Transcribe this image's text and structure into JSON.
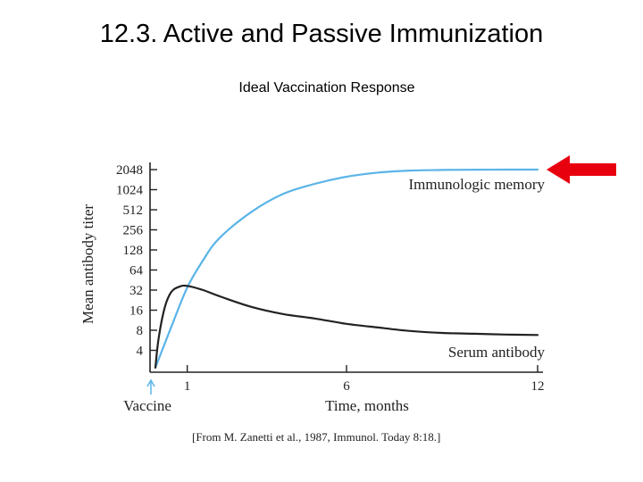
{
  "slide": {
    "title": "12.3. Active and Passive Immunization",
    "subtitle": "Ideal Vaccination Response",
    "citation": "[From M. Zanetti et al., 1987, Immunol. Today 8:18.]"
  },
  "colors": {
    "memory_line": "#5ab4e8",
    "serum_line": "#222222",
    "arrow": "#e8000f",
    "axis": "#222222"
  },
  "chart_data": {
    "type": "line",
    "title": "Ideal Vaccination Response",
    "xlabel": "Time, months",
    "ylabel": "Mean antibody titer",
    "x_ticks": [
      1,
      6,
      12
    ],
    "x_tick_labels": [
      "1",
      "6",
      "12"
    ],
    "xlim": [
      0,
      12
    ],
    "y_scale": "log2",
    "y_ticks": [
      4,
      8,
      16,
      32,
      64,
      128,
      256,
      512,
      1024,
      2048
    ],
    "y_tick_labels": [
      "4",
      "8",
      "16",
      "32",
      "64",
      "128",
      "256",
      "512",
      "1024",
      "2048"
    ],
    "ylim": [
      2,
      2048
    ],
    "vaccine_label": "Vaccine",
    "vaccine_x": 0,
    "series": [
      {
        "name": "Immunologic memory",
        "color": "#5ab4e8",
        "x": [
          0,
          0.5,
          1,
          1.5,
          2,
          3,
          4,
          5,
          6,
          7,
          8,
          9,
          10,
          11,
          12
        ],
        "y": [
          2.2,
          9,
          35,
          90,
          190,
          470,
          880,
          1250,
          1600,
          1850,
          1980,
          2020,
          2040,
          2048,
          2048
        ]
      },
      {
        "name": "Serum antibody",
        "color": "#222222",
        "x": [
          0,
          0.1,
          0.3,
          0.5,
          0.75,
          1,
          1.5,
          2,
          3,
          4,
          5,
          6,
          7,
          8,
          9,
          10,
          11,
          12
        ],
        "y": [
          2.2,
          6,
          18,
          30,
          36,
          37,
          32,
          26,
          18,
          14,
          12,
          10,
          8.8,
          7.8,
          7.3,
          7.1,
          6.9,
          6.8
        ]
      }
    ],
    "annotation": "red arrow pointing at Immunologic memory plateau"
  }
}
